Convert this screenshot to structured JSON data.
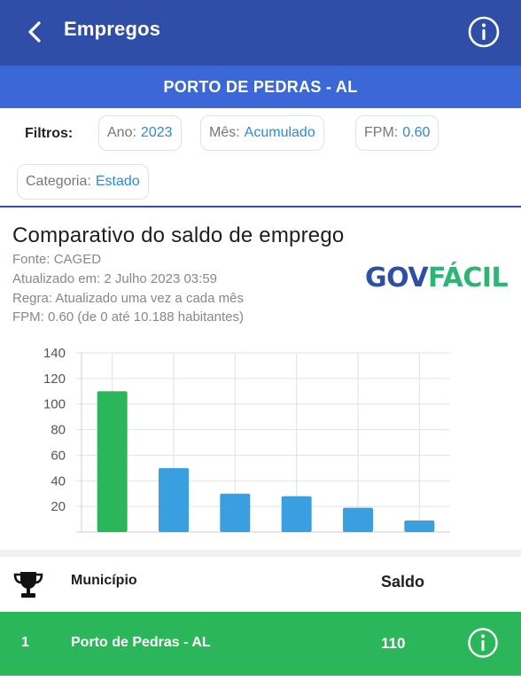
{
  "header": {
    "title": "Empregos",
    "back_icon": "chevron-left-icon",
    "info_icon": "info-icon",
    "bg_color": "#2f4ea8"
  },
  "city_banner": {
    "label": "PORTO DE PEDRAS - AL",
    "bg_color": "#3b68d6"
  },
  "filters": {
    "label": "Filtros:",
    "chips": [
      {
        "key": "Ano:",
        "value": "2023"
      },
      {
        "key": "Mês:",
        "value": "Acumulado"
      },
      {
        "key": "FPM:",
        "value": "0.60"
      },
      {
        "key": "Categoria:",
        "value": "Estado"
      }
    ]
  },
  "card": {
    "title": "Comparativo do saldo de emprego",
    "source": "Fonte: CAGED",
    "updated": "Atualizado em: 2 Julho 2023 03:59",
    "rule": "Regra: Atualizado uma vez a cada mês",
    "fpm": "FPM: 0.60 (de 0 até 10.188 habitantes)",
    "logo_left": "GOV",
    "logo_right": "FÁCIL"
  },
  "chart_data": {
    "type": "bar",
    "categories": [
      "",
      "",
      "",
      "",
      "",
      ""
    ],
    "values": [
      110,
      50,
      30,
      28,
      19,
      9
    ],
    "ylim": [
      0,
      140
    ],
    "yticks": [
      20,
      40,
      60,
      80,
      100,
      120,
      140
    ],
    "grid": true,
    "colors": [
      "#2bb65a",
      "#3a9fe0",
      "#3a9fe0",
      "#3a9fe0",
      "#3a9fe0",
      "#3a9fe0"
    ]
  },
  "table": {
    "header_icon": "trophy-icon",
    "col_municipio": "Município",
    "col_saldo": "Saldo",
    "rows": [
      {
        "rank": "1",
        "municipio": "Porto de Pedras - AL",
        "saldo": "110",
        "row_color": "#2bb65a"
      }
    ]
  }
}
